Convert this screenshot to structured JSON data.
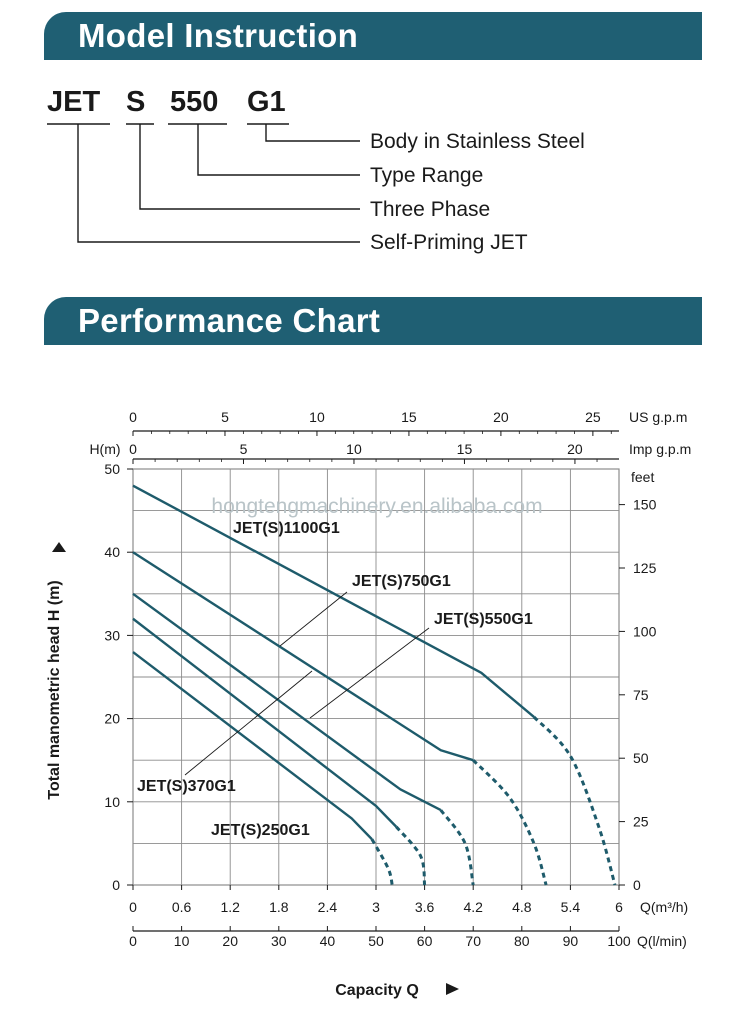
{
  "model_instruction": {
    "title": "Model Instruction",
    "codes": [
      "JET",
      "S",
      "550",
      "G1"
    ],
    "meanings": [
      "Body in Stainless Steel",
      "Type Range",
      "Three Phase",
      "Self-Priming JET"
    ]
  },
  "performance": {
    "title": "Performance Chart"
  },
  "watermark": "hongtengmachinery.en.alibaba.com",
  "colors": {
    "banner": "#1f5f73",
    "curve": "#1e5b6b",
    "grid": "#8c8c8c"
  },
  "chart_data": {
    "type": "line",
    "title": "Performance Chart",
    "ylabel": "Total manometric head H (m)",
    "xlabel": "Capacity Q",
    "y_unit_label": "H(m)",
    "ylim": [
      0,
      50
    ],
    "xlim": [
      0,
      6
    ],
    "y_ticks": [
      "0",
      "10",
      "20",
      "30",
      "40",
      "50"
    ],
    "x_ticks_m3h": [
      "0",
      "0.6",
      "1.2",
      "1.8",
      "2.4",
      "3",
      "3.6",
      "4.2",
      "4.8",
      "5.4",
      "6"
    ],
    "x_unit_m3h": "Q(m³/h)",
    "x_ticks_lmin": [
      "0",
      "10",
      "20",
      "30",
      "40",
      "50",
      "60",
      "70",
      "80",
      "90",
      "100"
    ],
    "x_unit_lmin": "Q(l/min)",
    "us_gpm_ticks": [
      "0",
      "5",
      "10",
      "15",
      "20",
      "25"
    ],
    "us_gpm_unit": "US g.p.m",
    "imp_gpm_ticks": [
      "0",
      "5",
      "10",
      "15",
      "20"
    ],
    "imp_gpm_unit": "Imp g.p.m",
    "feet_ticks": [
      "0",
      "25",
      "50",
      "75",
      "100",
      "125",
      "150"
    ],
    "feet_unit": "feet",
    "series": [
      {
        "name": "JET(S)1100G1",
        "solid": [
          [
            0,
            48
          ],
          [
            4.3,
            25.5
          ],
          [
            4.95,
            20.2
          ]
        ],
        "dashed": [
          [
            4.95,
            20.2
          ],
          [
            5.4,
            15.5
          ],
          [
            5.75,
            7
          ],
          [
            5.95,
            0
          ]
        ]
      },
      {
        "name": "JET(S)750G1",
        "solid": [
          [
            0,
            40
          ],
          [
            3.8,
            16.2
          ],
          [
            4.2,
            15
          ]
        ],
        "dashed": [
          [
            4.2,
            15
          ],
          [
            4.65,
            10.5
          ],
          [
            4.95,
            5
          ],
          [
            5.1,
            0
          ]
        ]
      },
      {
        "name": "JET(S)550G1",
        "solid": [
          [
            0,
            35
          ],
          [
            3.3,
            11.5
          ],
          [
            3.8,
            9
          ]
        ],
        "dashed": [
          [
            3.8,
            9
          ],
          [
            4.1,
            5
          ],
          [
            4.2,
            0
          ]
        ]
      },
      {
        "name": "JET(S)370G1",
        "solid": [
          [
            0,
            32
          ],
          [
            3.0,
            9.5
          ],
          [
            3.25,
            7
          ]
        ],
        "dashed": [
          [
            3.25,
            7
          ],
          [
            3.55,
            3.5
          ],
          [
            3.6,
            0
          ]
        ]
      },
      {
        "name": "JET(S)250G1",
        "solid": [
          [
            0,
            28
          ],
          [
            2.7,
            8
          ],
          [
            2.95,
            5.5
          ]
        ],
        "dashed": [
          [
            2.95,
            5.5
          ],
          [
            3.15,
            2
          ],
          [
            3.2,
            0
          ]
        ]
      }
    ]
  }
}
